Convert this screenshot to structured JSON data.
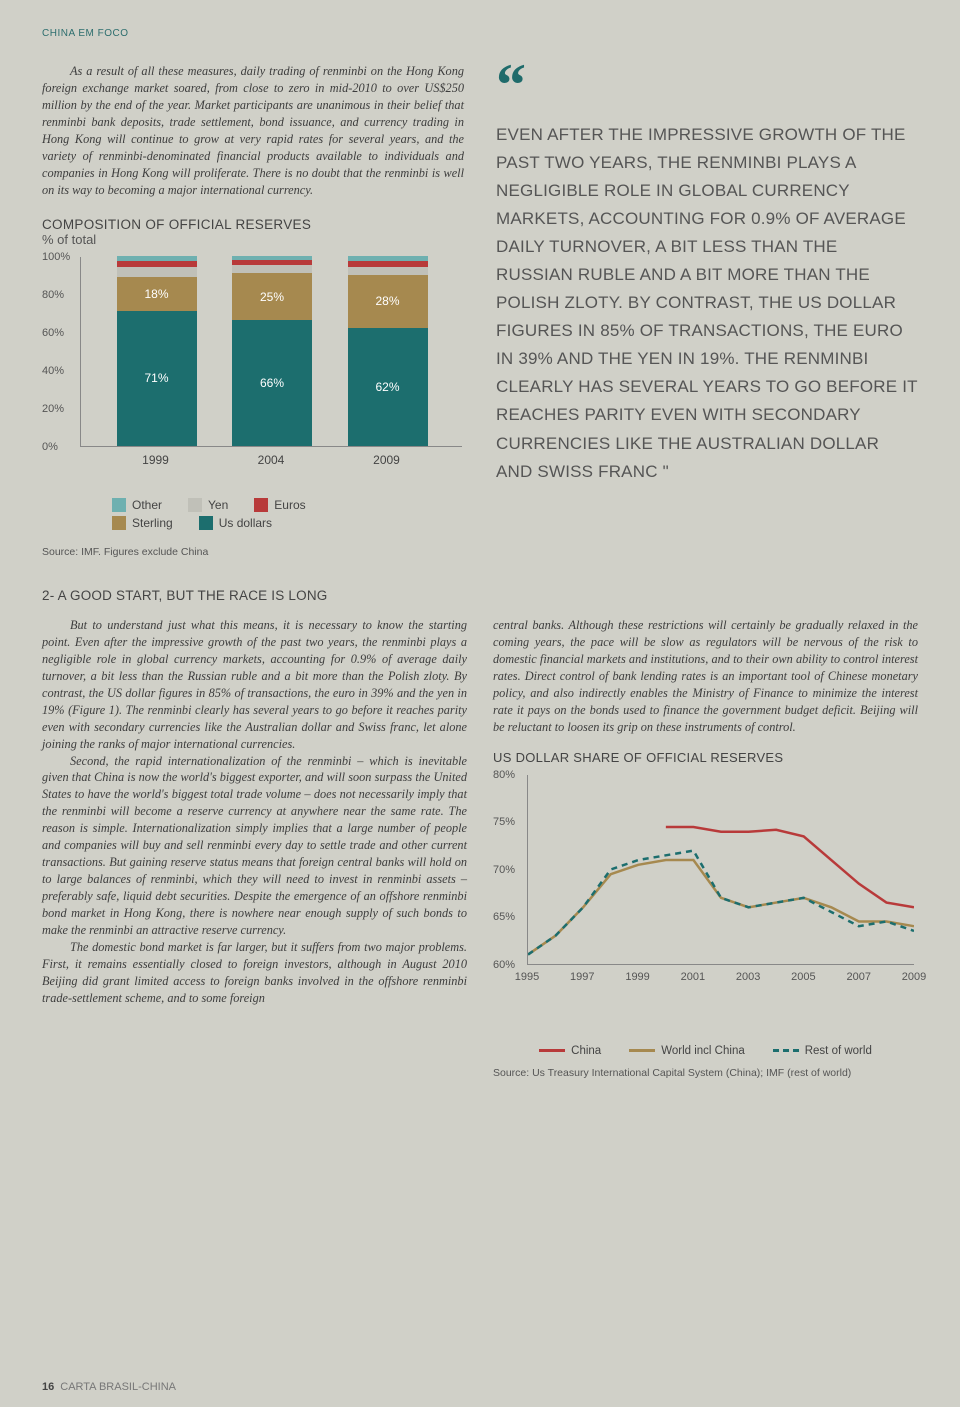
{
  "section_label": "CHINA EM FOCO",
  "para1_a": "As a result of all these measures, daily trading of renminbi on the Hong Kong foreign exchange market soared, from close to zero in mid-2010 to over US$250 million by the end of the year. Market participants are unanimous in their belief that renminbi bank deposits, trade settlement, bond issuance, and currency trading in Hong Kong will continue to grow at very rapid rates for several years, and the variety of renminbi-denominated financial products available to individuals and companies in Hong Kong will proliferate. There is no doubt that the renminbi is well on its way to becoming a major international currency.",
  "chart1": {
    "title": "COMPOSITION OF OFFICIAL RESERVES",
    "sub": "% of total",
    "ylim": [
      0,
      100
    ],
    "yticks": [
      0,
      20,
      40,
      60,
      80,
      100
    ],
    "categories": [
      "1999",
      "2004",
      "2009"
    ],
    "series": [
      "Us dollars",
      "Sterling",
      "Yen",
      "Euros",
      "Other"
    ],
    "colors": {
      "Us dollars": "#1c6e6e",
      "Sterling": "#a6894f",
      "Yen": "#c0c0b8",
      "Euros": "#b83a3a",
      "Other": "#6eb0b0"
    },
    "stacks": [
      {
        "Us dollars": 71,
        "Sterling": 18,
        "Yen": 5,
        "Euros": 3,
        "Other": 3
      },
      {
        "Us dollars": 66,
        "Sterling": 25,
        "Yen": 4,
        "Euros": 3,
        "Other": 2
      },
      {
        "Us dollars": 62,
        "Sterling": 28,
        "Yen": 4,
        "Euros": 3,
        "Other": 3
      }
    ],
    "labels": [
      {
        "Us dollars": "71%",
        "Sterling": "18%"
      },
      {
        "Us dollars": "66%",
        "Sterling": "25%"
      },
      {
        "Us dollars": "62%",
        "Sterling": "28%"
      }
    ],
    "legend_rows": [
      [
        [
          "Other",
          "#6eb0b0"
        ],
        [
          "Yen",
          "#c0c0b8"
        ],
        [
          "Euros",
          "#b83a3a"
        ]
      ],
      [
        [
          "Sterling",
          "#a6894f"
        ],
        [
          "Us dollars",
          "#1c6e6e"
        ]
      ]
    ],
    "source": "Source: IMF. Figures exclude China"
  },
  "pullquote": "EVEN AFTER THE IMPRESSIVE GROWTH OF THE PAST TWO YEARS, THE RENMINBI PLAYS A NEGLIGIBLE ROLE IN GLOBAL CURRENCY MARKETS, ACCOUNTING FOR 0.9% OF AVERAGE DAILY TURNOVER, A BIT LESS THAN THE RUSSIAN RUBLE AND A BIT MORE THAN THE POLISH ZLOTY. BY CONTRAST, THE US DOLLAR FIGURES IN 85% OF TRANSACTIONS, THE EURO IN 39% AND THE YEN IN 19%. THE RENMINBI CLEARLY HAS SEVERAL YEARS TO GO BEFORE IT REACHES PARITY EVEN WITH SECONDARY CURRENCIES LIKE THE AUSTRALIAN DOLLAR AND SWISS FRANC \"",
  "subsection_title": "2- A GOOD START, BUT THE RACE IS LONG",
  "para2": "But to understand just what this means, it is necessary to know the starting point. Even after the impressive growth of the past two years, the renminbi plays a negligible role in global currency markets, accounting for 0.9% of average daily turnover, a bit less than the Russian ruble and a bit more than the Polish zloty. By contrast, the US dollar figures in 85% of transactions, the euro in 39% and the yen in 19% (Figure 1). The renminbi clearly has several years to go before it reaches parity even with secondary currencies like the Australian dollar and Swiss franc, let alone joining the ranks of major international currencies.",
  "para3": "Second, the rapid internationalization of the renminbi – which is inevitable given that China is now the world's biggest exporter, and will soon surpass the United States to have the world's biggest total trade volume – does not necessarily imply that the renminbi will become a reserve currency at anywhere near the same rate. The reason is simple. Internationalization simply implies that a large number of people and companies will buy and sell renminbi every day to settle trade and other current transactions. But gaining reserve status means that foreign central banks will hold on to large balances of renminbi, which they will need to invest in renminbi assets – preferably safe, liquid debt securities. Despite the emergence of an offshore renminbi bond market in Hong Kong, there is nowhere near enough supply of such bonds to make the renminbi an attractive reserve currency.",
  "para4": "The domestic bond market is far larger, but it suffers from two major problems. First, it remains essentially closed to foreign investors, although in August 2010 Beijing did grant limited access to foreign banks involved in the offshore renminbi trade-settlement scheme, and to some foreign",
  "para5": "central banks. Although these restrictions will certainly be gradually relaxed in the coming years, the pace will be slow as regulators will be nervous of the risk to domestic financial markets and institutions, and to their own ability to control interest rates. Direct control of bank lending rates is an important tool of Chinese monetary policy, and also indirectly enables the Ministry of Finance to minimize the interest rate it pays on the bonds used to finance the government budget deficit. Beijing will be reluctant to loosen its grip on these instruments of control.",
  "chart2": {
    "title": "US DOLLAR SHARE OF OFFICIAL RESERVES",
    "ylim": [
      60,
      80
    ],
    "yticks": [
      60,
      65,
      70,
      75,
      80
    ],
    "xlim": [
      1995,
      2009
    ],
    "xticks": [
      1995,
      1997,
      1999,
      2001,
      2003,
      2005,
      2007,
      2009
    ],
    "series": {
      "China": {
        "color": "#b83a3a",
        "dash": "",
        "width": 2.5,
        "points": [
          [
            2000,
            74.5
          ],
          [
            2001,
            74.5
          ],
          [
            2002,
            74
          ],
          [
            2003,
            74
          ],
          [
            2004,
            74.2
          ],
          [
            2005,
            73.5
          ],
          [
            2006,
            71
          ],
          [
            2007,
            68.5
          ],
          [
            2008,
            66.5
          ],
          [
            2009,
            66
          ]
        ]
      },
      "World incl China": {
        "color": "#a6894f",
        "dash": "",
        "width": 2.5,
        "points": [
          [
            1995,
            61
          ],
          [
            1996,
            63
          ],
          [
            1997,
            66
          ],
          [
            1998,
            69.5
          ],
          [
            1999,
            70.5
          ],
          [
            2000,
            71
          ],
          [
            2001,
            71
          ],
          [
            2002,
            67
          ],
          [
            2003,
            66
          ],
          [
            2004,
            66.5
          ],
          [
            2005,
            67
          ],
          [
            2006,
            66
          ],
          [
            2007,
            64.5
          ],
          [
            2008,
            64.5
          ],
          [
            2009,
            64
          ]
        ]
      },
      "Rest of world": {
        "color": "#1c6e6e",
        "dash": "6,5",
        "width": 2.5,
        "points": [
          [
            1995,
            61
          ],
          [
            1996,
            63
          ],
          [
            1997,
            66
          ],
          [
            1998,
            70
          ],
          [
            1999,
            71
          ],
          [
            2000,
            71.5
          ],
          [
            2001,
            72
          ],
          [
            2002,
            67
          ],
          [
            2003,
            66
          ],
          [
            2004,
            66.5
          ],
          [
            2005,
            67
          ],
          [
            2006,
            65.5
          ],
          [
            2007,
            64
          ],
          [
            2008,
            64.5
          ],
          [
            2009,
            63.5
          ]
        ]
      }
    },
    "legend": [
      [
        "China",
        "#b83a3a",
        ""
      ],
      [
        "World incl China",
        "#a6894f",
        ""
      ],
      [
        "Rest of world",
        "#1c6e6e",
        "6,5"
      ]
    ],
    "source": "Source: Us Treasury International Capital System (China); IMF (rest of world)"
  },
  "footer": {
    "page": "16",
    "label": "CARTA BRASIL-CHINA"
  }
}
